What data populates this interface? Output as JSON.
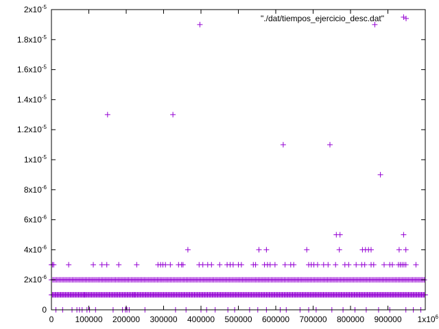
{
  "chart_data": {
    "type": "scatter",
    "title": "",
    "xlabel": "",
    "ylabel": "",
    "xlim": [
      0,
      1000000
    ],
    "ylim": [
      0,
      2e-05
    ],
    "grid": false,
    "legend_position": "top-right",
    "marker": "+",
    "colors": {
      "series": "#9400d3",
      "axes": "#000000",
      "background": "#ffffff"
    },
    "x_ticks": [
      {
        "value": 0,
        "base": "0",
        "exp": ""
      },
      {
        "value": 100000,
        "base": "100000",
        "exp": ""
      },
      {
        "value": 200000,
        "base": "200000",
        "exp": ""
      },
      {
        "value": 300000,
        "base": "300000",
        "exp": ""
      },
      {
        "value": 400000,
        "base": "400000",
        "exp": ""
      },
      {
        "value": 500000,
        "base": "500000",
        "exp": ""
      },
      {
        "value": 600000,
        "base": "600000",
        "exp": ""
      },
      {
        "value": 700000,
        "base": "700000",
        "exp": ""
      },
      {
        "value": 800000,
        "base": "800000",
        "exp": ""
      },
      {
        "value": 900000,
        "base": "900000",
        "exp": ""
      },
      {
        "value": 1000000,
        "base": "1x10",
        "exp": "6"
      }
    ],
    "y_ticks": [
      {
        "value": 0,
        "base": "0",
        "exp": ""
      },
      {
        "value": 2e-06,
        "base": "2x10",
        "exp": "-6"
      },
      {
        "value": 4e-06,
        "base": "4x10",
        "exp": "-6"
      },
      {
        "value": 6e-06,
        "base": "6x10",
        "exp": "-6"
      },
      {
        "value": 8e-06,
        "base": "8x10",
        "exp": "-6"
      },
      {
        "value": 1e-05,
        "base": "1x10",
        "exp": "-5"
      },
      {
        "value": 1.2e-05,
        "base": "1.2x10",
        "exp": "-5"
      },
      {
        "value": 1.4e-05,
        "base": "1.4x10",
        "exp": "-5"
      },
      {
        "value": 1.6e-05,
        "base": "1.6x10",
        "exp": "-5"
      },
      {
        "value": 1.8e-05,
        "base": "1.8x10",
        "exp": "-5"
      },
      {
        "value": 2e-05,
        "base": "2x10",
        "exp": "-5"
      }
    ],
    "series": [
      {
        "name": "\"./dat/tiempos_ejercicio_desc.dat\"",
        "points": [
          [
            150000,
            1.3e-05
          ],
          [
            325000,
            1.3e-05
          ],
          [
            397000,
            1.9e-05
          ],
          [
            620000,
            1.1e-05
          ],
          [
            745000,
            1.1e-05
          ],
          [
            865000,
            1.9e-05
          ],
          [
            880000,
            9e-06
          ],
          [
            942000,
            1.95e-05
          ],
          [
            365000,
            4e-06
          ],
          [
            555000,
            4e-06
          ],
          [
            575000,
            4e-06
          ],
          [
            683000,
            4e-06
          ],
          [
            770000,
            4e-06
          ],
          [
            832000,
            4e-06
          ],
          [
            840000,
            4e-06
          ],
          [
            848000,
            4e-06
          ],
          [
            855000,
            4e-06
          ],
          [
            930000,
            4e-06
          ],
          [
            948000,
            4e-06
          ],
          [
            762000,
            5e-06
          ],
          [
            772000,
            5e-06
          ],
          [
            942000,
            5e-06
          ],
          [
            0,
            3e-06
          ],
          [
            3000,
            3e-06
          ],
          [
            6000,
            3e-06
          ],
          [
            46000,
            3e-06
          ],
          [
            112000,
            3e-06
          ],
          [
            135000,
            3e-06
          ],
          [
            148000,
            3e-06
          ],
          [
            180000,
            3e-06
          ],
          [
            228000,
            3e-06
          ],
          [
            285000,
            3e-06
          ],
          [
            292000,
            3e-06
          ],
          [
            298000,
            3e-06
          ],
          [
            305000,
            3e-06
          ],
          [
            318000,
            3e-06
          ],
          [
            340000,
            3e-06
          ],
          [
            348000,
            3e-06
          ],
          [
            352000,
            3e-06
          ],
          [
            395000,
            3e-06
          ],
          [
            405000,
            3e-06
          ],
          [
            418000,
            3e-06
          ],
          [
            428000,
            3e-06
          ],
          [
            450000,
            3e-06
          ],
          [
            470000,
            3e-06
          ],
          [
            478000,
            3e-06
          ],
          [
            486000,
            3e-06
          ],
          [
            500000,
            3e-06
          ],
          [
            508000,
            3e-06
          ],
          [
            540000,
            3e-06
          ],
          [
            546000,
            3e-06
          ],
          [
            570000,
            3e-06
          ],
          [
            578000,
            3e-06
          ],
          [
            585000,
            3e-06
          ],
          [
            598000,
            3e-06
          ],
          [
            625000,
            3e-06
          ],
          [
            640000,
            3e-06
          ],
          [
            648000,
            3e-06
          ],
          [
            688000,
            3e-06
          ],
          [
            695000,
            3e-06
          ],
          [
            702000,
            3e-06
          ],
          [
            712000,
            3e-06
          ],
          [
            728000,
            3e-06
          ],
          [
            740000,
            3e-06
          ],
          [
            760000,
            3e-06
          ],
          [
            785000,
            3e-06
          ],
          [
            795000,
            3e-06
          ],
          [
            815000,
            3e-06
          ],
          [
            830000,
            3e-06
          ],
          [
            838000,
            3e-06
          ],
          [
            855000,
            3e-06
          ],
          [
            862000,
            3e-06
          ],
          [
            890000,
            3e-06
          ],
          [
            905000,
            3e-06
          ],
          [
            912000,
            3e-06
          ],
          [
            928000,
            3e-06
          ],
          [
            933000,
            3e-06
          ],
          [
            938000,
            3e-06
          ],
          [
            943000,
            3e-06
          ],
          [
            948000,
            3e-06
          ],
          [
            975000,
            3e-06
          ],
          [
            88000,
            1e-06
          ],
          [
            222000,
            1e-06
          ],
          [
            12000,
            0
          ],
          [
            30000,
            0
          ],
          [
            55000,
            0
          ],
          [
            68000,
            0
          ],
          [
            75000,
            0
          ],
          [
            82000,
            0
          ],
          [
            95000,
            0
          ],
          [
            102000,
            0
          ],
          [
            118000,
            0
          ],
          [
            165000,
            0
          ],
          [
            190000,
            0
          ],
          [
            198000,
            0
          ],
          [
            202000,
            0
          ],
          [
            208000,
            0
          ],
          [
            250000,
            0
          ],
          [
            332000,
            0
          ],
          [
            360000,
            0
          ],
          [
            400000,
            0
          ],
          [
            415000,
            0
          ],
          [
            438000,
            0
          ],
          [
            472000,
            0
          ],
          [
            490000,
            0
          ],
          [
            530000,
            0
          ],
          [
            552000,
            0
          ],
          [
            575000,
            0
          ],
          [
            612000,
            0
          ],
          [
            628000,
            0
          ],
          [
            665000,
            0
          ],
          [
            688000,
            0
          ],
          [
            708000,
            0
          ],
          [
            750000,
            0
          ],
          [
            780000,
            0
          ],
          [
            812000,
            0
          ],
          [
            842000,
            0
          ],
          [
            875000,
            0
          ],
          [
            905000,
            0
          ],
          [
            948000,
            0
          ],
          [
            968000,
            0
          ],
          [
            988000,
            0
          ]
        ],
        "bands": [
          {
            "y": 2e-06,
            "x_start": 0,
            "x_end": 1000000,
            "step": 3500
          },
          {
            "y": 1e-06,
            "x_start": 0,
            "x_end": 1000000,
            "step": 2500
          }
        ]
      }
    ]
  }
}
